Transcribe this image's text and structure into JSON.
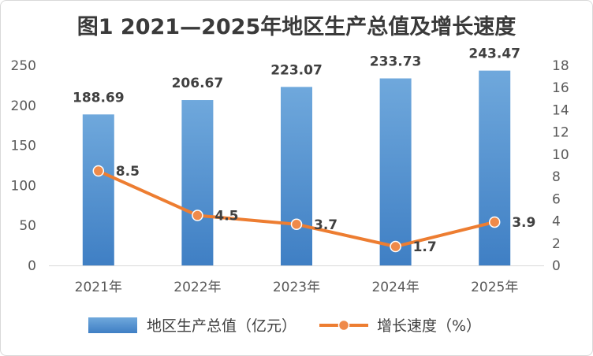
{
  "chart_data": {
    "type": "bar",
    "title": "图1  2021—2025年地区生产总值及增长速度",
    "categories": [
      "2021年",
      "2022年",
      "2023年",
      "2024年",
      "2025年"
    ],
    "series": [
      {
        "name": "地区生产总值（亿元）",
        "type": "bar",
        "axis": "left",
        "color": "#5b9bd5",
        "values": [
          188.69,
          206.67,
          223.07,
          233.73,
          243.47
        ],
        "labels": [
          "188.69",
          "206.67",
          "223.07",
          "233.73",
          "243.47"
        ]
      },
      {
        "name": "增长速度（%）",
        "type": "line",
        "axis": "right",
        "color": "#ed7d31",
        "values": [
          8.5,
          4.5,
          3.7,
          1.7,
          3.9
        ],
        "labels": [
          "8.5",
          "4.5",
          "3.7",
          "1.7",
          "3.9"
        ]
      }
    ],
    "y_left": {
      "min": 0,
      "max": 250,
      "ticks": [
        "0",
        "50",
        "100",
        "150",
        "200",
        "250"
      ]
    },
    "y_right": {
      "min": 0,
      "max": 18,
      "ticks": [
        "0",
        "2",
        "4",
        "6",
        "8",
        "10",
        "12",
        "14",
        "16",
        "18"
      ]
    },
    "legend_position": "bottom",
    "grid": false
  }
}
